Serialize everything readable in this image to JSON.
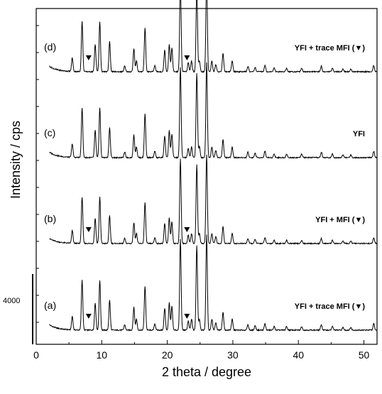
{
  "chart_data": {
    "type": "line",
    "xlabel": "2 theta / degree",
    "ylabel": "Intensity / cps",
    "xlim": [
      0,
      52
    ],
    "xticks": [
      0,
      10,
      20,
      30,
      40,
      50
    ],
    "grid": false,
    "scale_bar": {
      "label": "4000",
      "value": 4000
    },
    "peaks": [
      {
        "x": 5.5,
        "rel": 0.15
      },
      {
        "x": 7.0,
        "rel": 0.55
      },
      {
        "x": 9.0,
        "rel": 0.3
      },
      {
        "x": 9.7,
        "rel": 0.55
      },
      {
        "x": 11.2,
        "rel": 0.33
      },
      {
        "x": 13.5,
        "rel": 0.06
      },
      {
        "x": 14.9,
        "rel": 0.25
      },
      {
        "x": 15.3,
        "rel": 0.12
      },
      {
        "x": 16.6,
        "rel": 0.48
      },
      {
        "x": 18.1,
        "rel": 0.07
      },
      {
        "x": 19.6,
        "rel": 0.24
      },
      {
        "x": 20.3,
        "rel": 0.3
      },
      {
        "x": 20.7,
        "rel": 0.26
      },
      {
        "x": 22.0,
        "rel": 1.0
      },
      {
        "x": 23.2,
        "rel": 0.1
      },
      {
        "x": 23.7,
        "rel": 0.12
      },
      {
        "x": 24.5,
        "rel": 0.93
      },
      {
        "x": 24.9,
        "rel": 0.12
      },
      {
        "x": 26.0,
        "rel": 1.05
      },
      {
        "x": 26.8,
        "rel": 0.12
      },
      {
        "x": 27.4,
        "rel": 0.08
      },
      {
        "x": 28.5,
        "rel": 0.2
      },
      {
        "x": 29.9,
        "rel": 0.12
      },
      {
        "x": 32.3,
        "rel": 0.06
      },
      {
        "x": 33.4,
        "rel": 0.05
      },
      {
        "x": 34.9,
        "rel": 0.07
      },
      {
        "x": 36.3,
        "rel": 0.04
      },
      {
        "x": 38.2,
        "rel": 0.04
      },
      {
        "x": 40.5,
        "rel": 0.04
      },
      {
        "x": 43.5,
        "rel": 0.06
      },
      {
        "x": 45.2,
        "rel": 0.04
      },
      {
        "x": 46.8,
        "rel": 0.03
      },
      {
        "x": 48.0,
        "rel": 0.03
      },
      {
        "x": 51.5,
        "rel": 0.07
      }
    ],
    "series": [
      {
        "panel": "(a)",
        "annotation": "YFI + trace MFI (▼)",
        "mfi_markers_x": [
          8.0,
          23.0
        ],
        "intensity_scale": 1.0
      },
      {
        "panel": "(b)",
        "annotation": "YFI + MFI (▼)",
        "mfi_markers_x": [
          8.0,
          23.0
        ],
        "intensity_scale": 0.93
      },
      {
        "panel": "(c)",
        "annotation": "YFI",
        "mfi_markers_x": [],
        "intensity_scale": 1.0
      },
      {
        "panel": "(d)",
        "annotation": "YFI + trace MFI (▼)",
        "mfi_markers_x": [
          8.0,
          23.0
        ],
        "intensity_scale": 1.0
      }
    ]
  }
}
